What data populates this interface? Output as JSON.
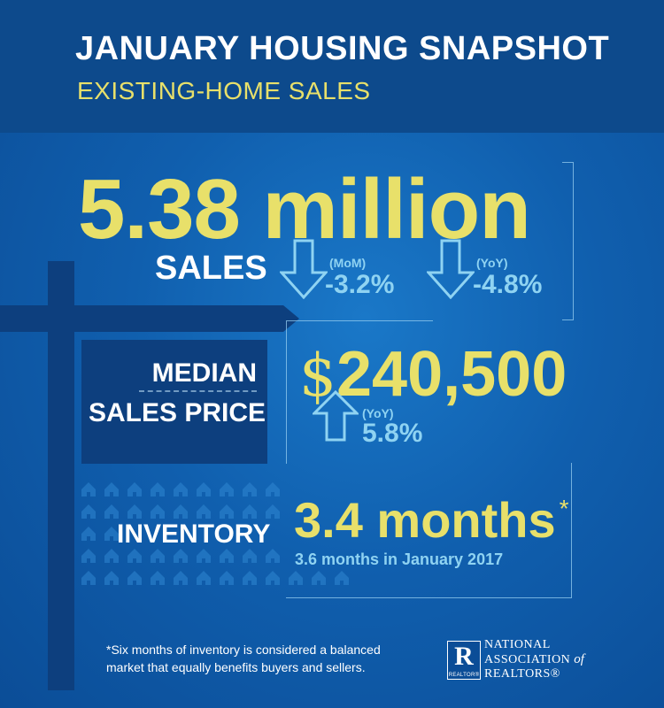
{
  "header": {
    "title": "JANUARY HOUSING SNAPSHOT",
    "subtitle": "EXISTING-HOME SALES"
  },
  "sales": {
    "value": "5.38 million",
    "label": "SALES",
    "mom": {
      "tag": "(MoM)",
      "value": "-3.2%",
      "direction": "down"
    },
    "yoy": {
      "tag": "(YoY)",
      "value": "-4.8%",
      "direction": "down"
    }
  },
  "median_price": {
    "label_line1": "MEDIAN",
    "label_line2": "SALES PRICE",
    "currency": "$",
    "value": "240,500",
    "yoy": {
      "tag": "(YoY)",
      "value": "5.8%",
      "direction": "up"
    }
  },
  "inventory": {
    "label": "INVENTORY",
    "value": "3.4 months",
    "asterisk": "*",
    "comparison": "3.6 months in January 2017"
  },
  "footnote": "*Six months of inventory is considered a balanced market that equally benefits buyers and sellers.",
  "logo": {
    "letter": "R",
    "mark": "REALTOR®",
    "org_line1": "NATIONAL",
    "org_line2": "ASSOCIATION",
    "org_of": "of",
    "org_line3": "REALTORS®"
  },
  "colors": {
    "background": "#105fae",
    "header_band": "#0d4a8c",
    "accent_yellow": "#e8e06a",
    "accent_cyan": "#8fd3f2",
    "post": "#0d3f7e"
  },
  "icons": [
    "down-arrow-icon",
    "up-arrow-icon",
    "house-icon",
    "signpost-icon",
    "realtor-logo-icon"
  ]
}
